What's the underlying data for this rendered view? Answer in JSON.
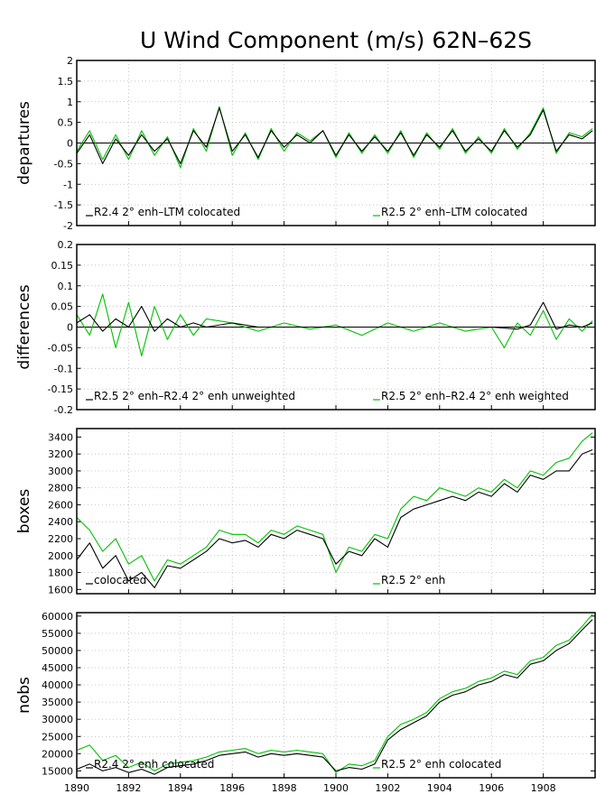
{
  "title": "U Wind Component (m/s) 62N–62S",
  "colors": {
    "black_series": "#000000",
    "green_series": "#00c000",
    "frame": "#000000",
    "grid": "#b0b0b0"
  },
  "x_axis": {
    "range": [
      1890,
      1910
    ],
    "ticks": [
      "1890",
      "1892",
      "1894",
      "1896",
      "1898",
      "1900",
      "1902",
      "1904",
      "1906",
      "1908"
    ]
  },
  "chart_data": [
    {
      "type": "line",
      "id": "departures",
      "ylabel": "departures",
      "ylim": [
        -2,
        2
      ],
      "yticks": [
        "-2",
        "-1.5",
        "-1",
        "-0.5",
        "0",
        "0.5",
        "1",
        "1.5",
        "2"
      ],
      "zero_line": true,
      "grid": "dotted",
      "x_range": [
        1890,
        1910
      ],
      "series": [
        {
          "name": "R2.4 2° enh–LTM colocated",
          "color": "#000000",
          "x": [
            1890.0,
            1890.5,
            1891.0,
            1891.5,
            1892.0,
            1892.5,
            1893.0,
            1893.5,
            1894.0,
            1894.5,
            1895.0,
            1895.5,
            1896.0,
            1896.5,
            1897.0,
            1897.5,
            1898.0,
            1898.5,
            1899.0,
            1899.5,
            1900.0,
            1900.5,
            1901.0,
            1901.5,
            1902.0,
            1902.5,
            1903.0,
            1903.5,
            1904.0,
            1904.5,
            1905.0,
            1905.5,
            1906.0,
            1906.5,
            1907.0,
            1907.5,
            1908.0,
            1908.5,
            1909.0,
            1909.5,
            1909.9
          ],
          "y": [
            -0.25,
            0.2,
            -0.5,
            0.1,
            -0.3,
            0.2,
            -0.2,
            0.1,
            -0.5,
            0.3,
            -0.1,
            0.85,
            -0.2,
            0.2,
            -0.35,
            0.3,
            -0.1,
            0.2,
            0.0,
            0.3,
            -0.3,
            0.2,
            -0.2,
            0.15,
            -0.2,
            0.25,
            -0.3,
            0.2,
            -0.1,
            0.3,
            -0.2,
            0.1,
            -0.2,
            0.3,
            -0.1,
            0.2,
            0.8,
            -0.2,
            0.2,
            0.1,
            0.3
          ]
        },
        {
          "name": "R2.5 2° enh–LTM colocated",
          "color": "#00c000",
          "x": [
            1890.0,
            1890.5,
            1891.0,
            1891.5,
            1892.0,
            1892.5,
            1893.0,
            1893.5,
            1894.0,
            1894.5,
            1895.0,
            1895.5,
            1896.0,
            1896.5,
            1897.0,
            1897.5,
            1898.0,
            1898.5,
            1899.0,
            1899.5,
            1900.0,
            1900.5,
            1901.0,
            1901.5,
            1902.0,
            1902.5,
            1903.0,
            1903.5,
            1904.0,
            1904.5,
            1905.0,
            1905.5,
            1906.0,
            1906.5,
            1907.0,
            1907.5,
            1908.0,
            1908.5,
            1909.0,
            1909.5,
            1909.9
          ],
          "y": [
            -0.2,
            0.3,
            -0.4,
            0.2,
            -0.4,
            0.3,
            -0.3,
            0.15,
            -0.6,
            0.35,
            -0.2,
            0.88,
            -0.3,
            0.25,
            -0.4,
            0.35,
            -0.2,
            0.25,
            0.05,
            0.3,
            -0.35,
            0.25,
            -0.25,
            0.2,
            -0.25,
            0.3,
            -0.35,
            0.25,
            -0.15,
            0.35,
            -0.25,
            0.15,
            -0.25,
            0.35,
            -0.15,
            0.25,
            0.85,
            -0.25,
            0.25,
            0.15,
            0.35
          ]
        }
      ]
    },
    {
      "type": "line",
      "id": "differences",
      "ylabel": "differences",
      "ylim": [
        -0.2,
        0.2
      ],
      "yticks": [
        "-0.2",
        "-0.15",
        "-0.1",
        "-0.05",
        "0",
        "0.05",
        "0.1",
        "0.15",
        "0.2"
      ],
      "zero_line": true,
      "grid": "dotted",
      "x_range": [
        1890,
        1910
      ],
      "series": [
        {
          "name": "R2.5 2° enh–R2.4 2° enh unweighted",
          "color": "#000000",
          "x": [
            1890.0,
            1890.5,
            1891.0,
            1891.5,
            1892.0,
            1892.5,
            1893.0,
            1893.5,
            1894.0,
            1894.5,
            1895.0,
            1896.0,
            1897.0,
            1898.0,
            1899.0,
            1900.0,
            1901.0,
            1902.0,
            1903.0,
            1904.0,
            1905.0,
            1906.0,
            1907.0,
            1907.5,
            1908.0,
            1908.5,
            1909.0,
            1909.5,
            1909.9
          ],
          "y": [
            0.01,
            0.03,
            -0.01,
            0.02,
            0.0,
            0.05,
            -0.01,
            0.02,
            0.0,
            0.01,
            0.0,
            0.01,
            0.0,
            0.0,
            0.0,
            0.0,
            0.0,
            0.0,
            0.0,
            0.0,
            0.0,
            0.0,
            -0.005,
            0.005,
            0.06,
            -0.005,
            0.005,
            0.0,
            0.01
          ]
        },
        {
          "name": "R2.5 2° enh–R2.4 2° enh weighted",
          "color": "#00c000",
          "x": [
            1890.0,
            1890.5,
            1891.0,
            1891.5,
            1892.0,
            1892.5,
            1893.0,
            1893.5,
            1894.0,
            1894.5,
            1895.0,
            1896.0,
            1897.0,
            1898.0,
            1899.0,
            1900.0,
            1901.0,
            1902.0,
            1903.0,
            1904.0,
            1905.0,
            1906.0,
            1906.5,
            1907.0,
            1907.5,
            1908.0,
            1908.5,
            1909.0,
            1909.5,
            1909.9
          ],
          "y": [
            0.03,
            -0.02,
            0.08,
            -0.05,
            0.06,
            -0.07,
            0.05,
            -0.03,
            0.03,
            -0.02,
            0.02,
            0.01,
            -0.01,
            0.01,
            -0.005,
            0.005,
            -0.02,
            0.01,
            -0.01,
            0.01,
            -0.01,
            0.0,
            -0.05,
            0.01,
            -0.02,
            0.04,
            -0.03,
            0.02,
            -0.01,
            0.015
          ]
        }
      ]
    },
    {
      "type": "line",
      "id": "boxes",
      "ylabel": "boxes",
      "ylim": [
        1550,
        3500
      ],
      "yticks": [
        "1600",
        "1800",
        "2000",
        "2200",
        "2400",
        "2600",
        "2800",
        "3000",
        "3200",
        "3400"
      ],
      "zero_line": false,
      "grid": "dotted",
      "x_range": [
        1890,
        1910
      ],
      "series": [
        {
          "name": "colocated",
          "color": "#000000",
          "x": [
            1890.0,
            1890.5,
            1891.0,
            1891.5,
            1892.0,
            1892.5,
            1893.0,
            1893.5,
            1894.0,
            1894.5,
            1895.0,
            1895.5,
            1896.0,
            1896.5,
            1897.0,
            1897.5,
            1898.0,
            1898.5,
            1899.0,
            1899.5,
            1900.0,
            1900.5,
            1901.0,
            1901.5,
            1902.0,
            1902.5,
            1903.0,
            1903.5,
            1904.0,
            1904.5,
            1905.0,
            1905.5,
            1906.0,
            1906.5,
            1907.0,
            1907.5,
            1908.0,
            1908.5,
            1909.0,
            1909.5,
            1909.9
          ],
          "y": [
            1950,
            2150,
            1850,
            2000,
            1700,
            1800,
            1620,
            1880,
            1850,
            1950,
            2050,
            2200,
            2150,
            2180,
            2100,
            2250,
            2200,
            2300,
            2250,
            2200,
            1900,
            2050,
            2000,
            2200,
            2100,
            2450,
            2550,
            2600,
            2650,
            2700,
            2650,
            2750,
            2700,
            2850,
            2750,
            2950,
            2900,
            3000,
            3000,
            3200,
            3250
          ]
        },
        {
          "name": "R2.5 2° enh",
          "color": "#00c000",
          "x": [
            1890.0,
            1890.5,
            1891.0,
            1891.5,
            1892.0,
            1892.5,
            1893.0,
            1893.5,
            1894.0,
            1894.5,
            1895.0,
            1895.5,
            1896.0,
            1896.5,
            1897.0,
            1897.5,
            1898.0,
            1898.5,
            1899.0,
            1899.5,
            1900.0,
            1900.5,
            1901.0,
            1901.5,
            1902.0,
            1902.5,
            1903.0,
            1903.5,
            1904.0,
            1904.5,
            1905.0,
            1905.5,
            1906.0,
            1906.5,
            1907.0,
            1907.5,
            1908.0,
            1908.5,
            1909.0,
            1909.5,
            1909.9
          ],
          "y": [
            2450,
            2300,
            2050,
            2200,
            1900,
            2000,
            1700,
            1950,
            1900,
            2000,
            2100,
            2300,
            2250,
            2250,
            2150,
            2300,
            2250,
            2350,
            2300,
            2250,
            1800,
            2100,
            2050,
            2250,
            2200,
            2550,
            2700,
            2650,
            2800,
            2750,
            2700,
            2800,
            2750,
            2900,
            2800,
            3000,
            2950,
            3100,
            3150,
            3350,
            3450
          ]
        }
      ]
    },
    {
      "type": "line",
      "id": "nobs",
      "ylabel": "nobs",
      "ylim": [
        13000,
        61000
      ],
      "yticks": [
        "15000",
        "20000",
        "25000",
        "30000",
        "35000",
        "40000",
        "45000",
        "50000",
        "55000",
        "60000"
      ],
      "zero_line": false,
      "grid": "dotted",
      "x_range": [
        1890,
        1910
      ],
      "series": [
        {
          "name": "R2.4 2° enh colocated",
          "color": "#000000",
          "x": [
            1890.0,
            1890.5,
            1891.0,
            1891.5,
            1892.0,
            1892.5,
            1893.0,
            1893.5,
            1894.0,
            1894.5,
            1895.0,
            1895.5,
            1896.0,
            1896.5,
            1897.0,
            1897.5,
            1898.0,
            1898.5,
            1899.0,
            1899.5,
            1900.0,
            1900.5,
            1901.0,
            1901.5,
            1902.0,
            1902.5,
            1903.0,
            1903.5,
            1904.0,
            1904.5,
            1905.0,
            1905.5,
            1906.0,
            1906.5,
            1907.0,
            1907.5,
            1908.0,
            1908.5,
            1909.0,
            1909.5,
            1909.9
          ],
          "y": [
            15500,
            17000,
            15000,
            16000,
            14500,
            15500,
            14000,
            16000,
            16500,
            17000,
            18000,
            19500,
            20000,
            20500,
            19000,
            20000,
            19500,
            20000,
            19500,
            19000,
            15000,
            16000,
            15500,
            17000,
            24000,
            27000,
            29000,
            31000,
            35000,
            37000,
            38000,
            40000,
            41000,
            43000,
            42000,
            46000,
            47000,
            50000,
            52000,
            56000,
            59000
          ]
        },
        {
          "name": "R2.5 2° enh colocated",
          "color": "#00c000",
          "x": [
            1890.0,
            1890.5,
            1891.0,
            1891.5,
            1892.0,
            1892.5,
            1893.0,
            1893.5,
            1894.0,
            1894.5,
            1895.0,
            1895.5,
            1896.0,
            1896.5,
            1897.0,
            1897.5,
            1898.0,
            1898.5,
            1899.0,
            1899.5,
            1900.0,
            1900.5,
            1901.0,
            1901.5,
            1902.0,
            1902.5,
            1903.0,
            1903.5,
            1904.0,
            1904.5,
            1905.0,
            1905.5,
            1906.0,
            1906.5,
            1907.0,
            1907.5,
            1908.0,
            1908.5,
            1909.0,
            1909.5,
            1909.9
          ],
          "y": [
            21000,
            22500,
            18000,
            19500,
            16000,
            17500,
            15000,
            17000,
            17500,
            18000,
            19000,
            20500,
            21000,
            21500,
            20000,
            21000,
            20500,
            21000,
            20500,
            20000,
            14500,
            17000,
            16500,
            18000,
            25000,
            28500,
            30000,
            32000,
            36000,
            38000,
            39000,
            41000,
            42000,
            44000,
            43000,
            47000,
            48000,
            51500,
            53000,
            57000,
            60500
          ]
        }
      ]
    }
  ]
}
